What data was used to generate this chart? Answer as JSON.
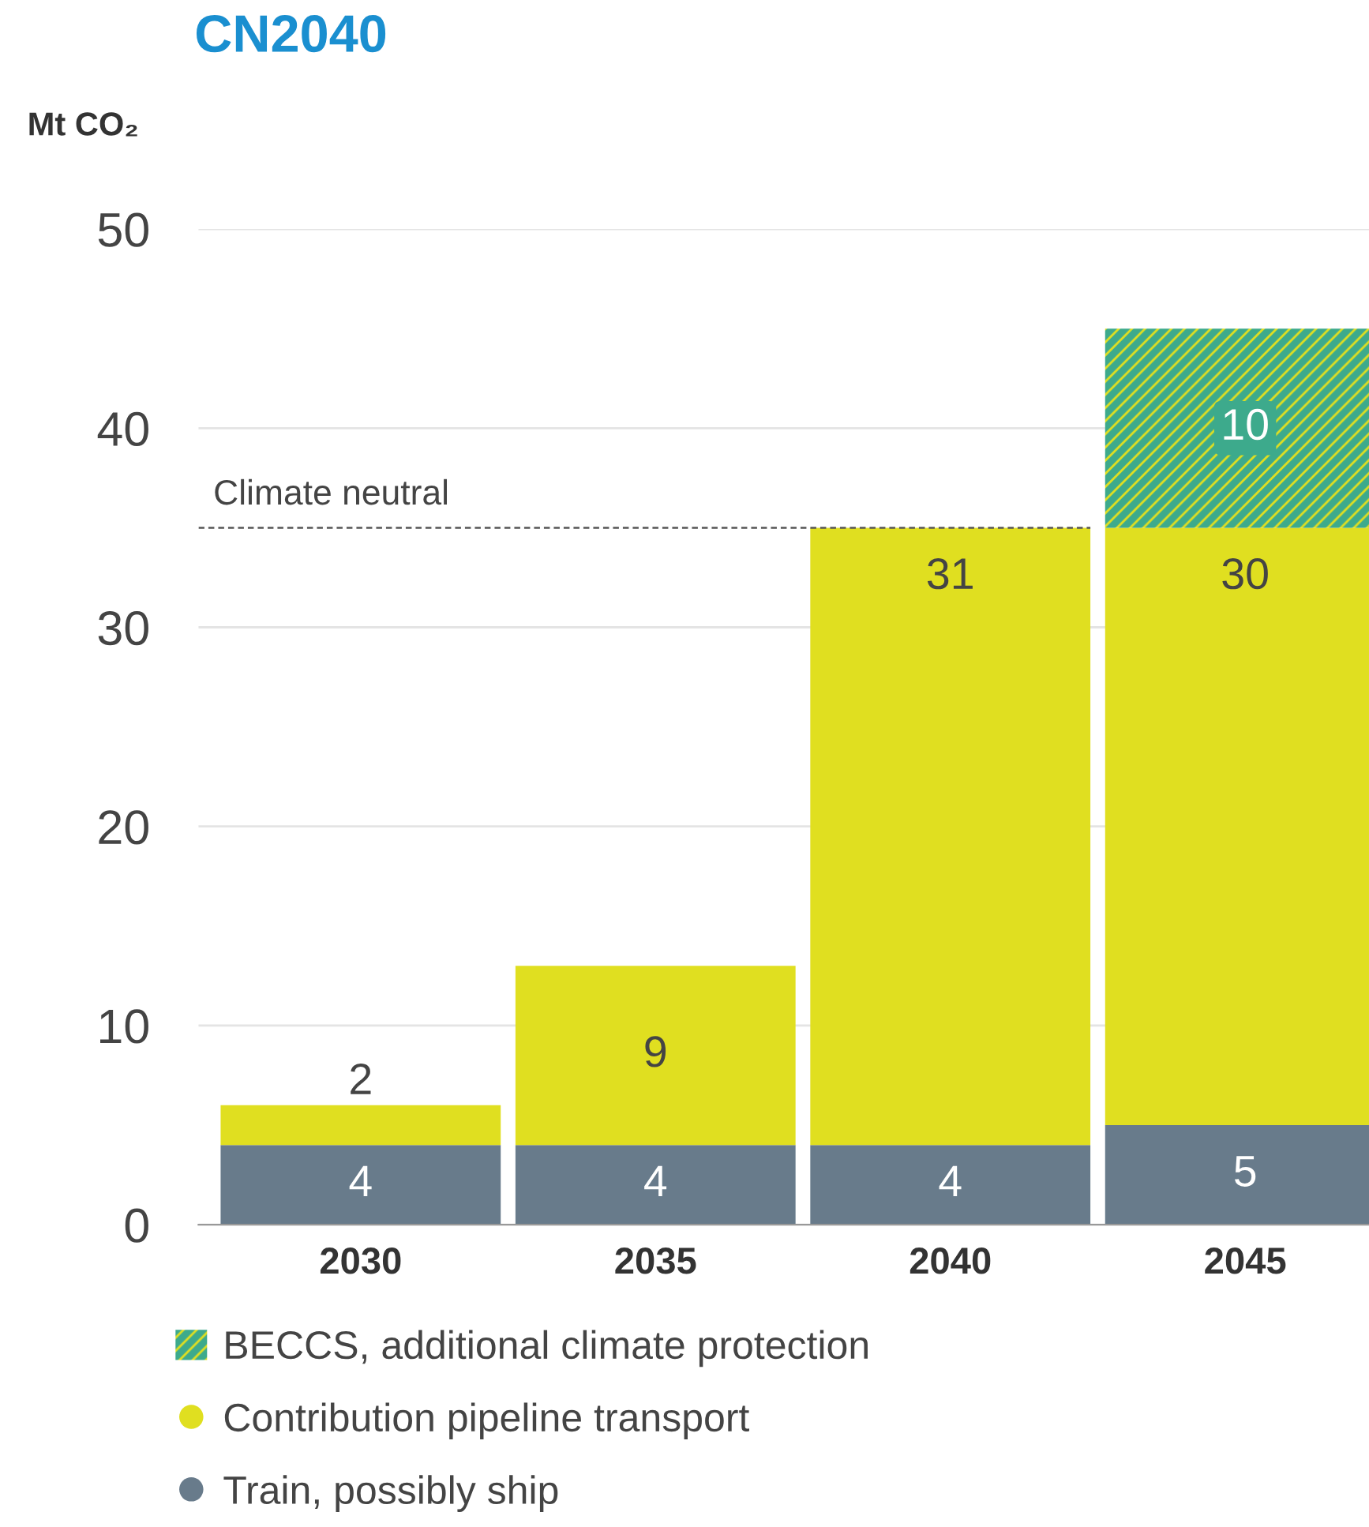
{
  "chart_data": {
    "type": "bar",
    "title": "CN2040",
    "ylabel": "Mt CO₂",
    "stacked": true,
    "categories": [
      "2030",
      "2035",
      "2040",
      "2045"
    ],
    "series": [
      {
        "name": "Train, possibly ship",
        "color": "#687b8b",
        "values": [
          4,
          4,
          4,
          5
        ],
        "value_labels": [
          "4",
          "4",
          "4",
          "5"
        ]
      },
      {
        "name": "Contribution pipeline transport",
        "color": "#e0df20",
        "values": [
          2,
          9,
          31,
          30
        ],
        "value_labels": [
          "2",
          "9",
          "31",
          "30"
        ]
      },
      {
        "name": "BECCS, additional climate protection",
        "color": "#3daa8c",
        "values": [
          null,
          null,
          null,
          10
        ],
        "value_labels": [
          null,
          null,
          null,
          "10"
        ]
      }
    ],
    "ylim": [
      0,
      50
    ],
    "yticks": [
      0,
      10,
      20,
      30,
      40,
      50
    ],
    "grid": "y",
    "legend": "bottom",
    "ref_lines": [
      {
        "axis": "y",
        "value": 35,
        "label": "Climate neutral",
        "line_style": "dashed",
        "color": "#555555"
      }
    ]
  }
}
